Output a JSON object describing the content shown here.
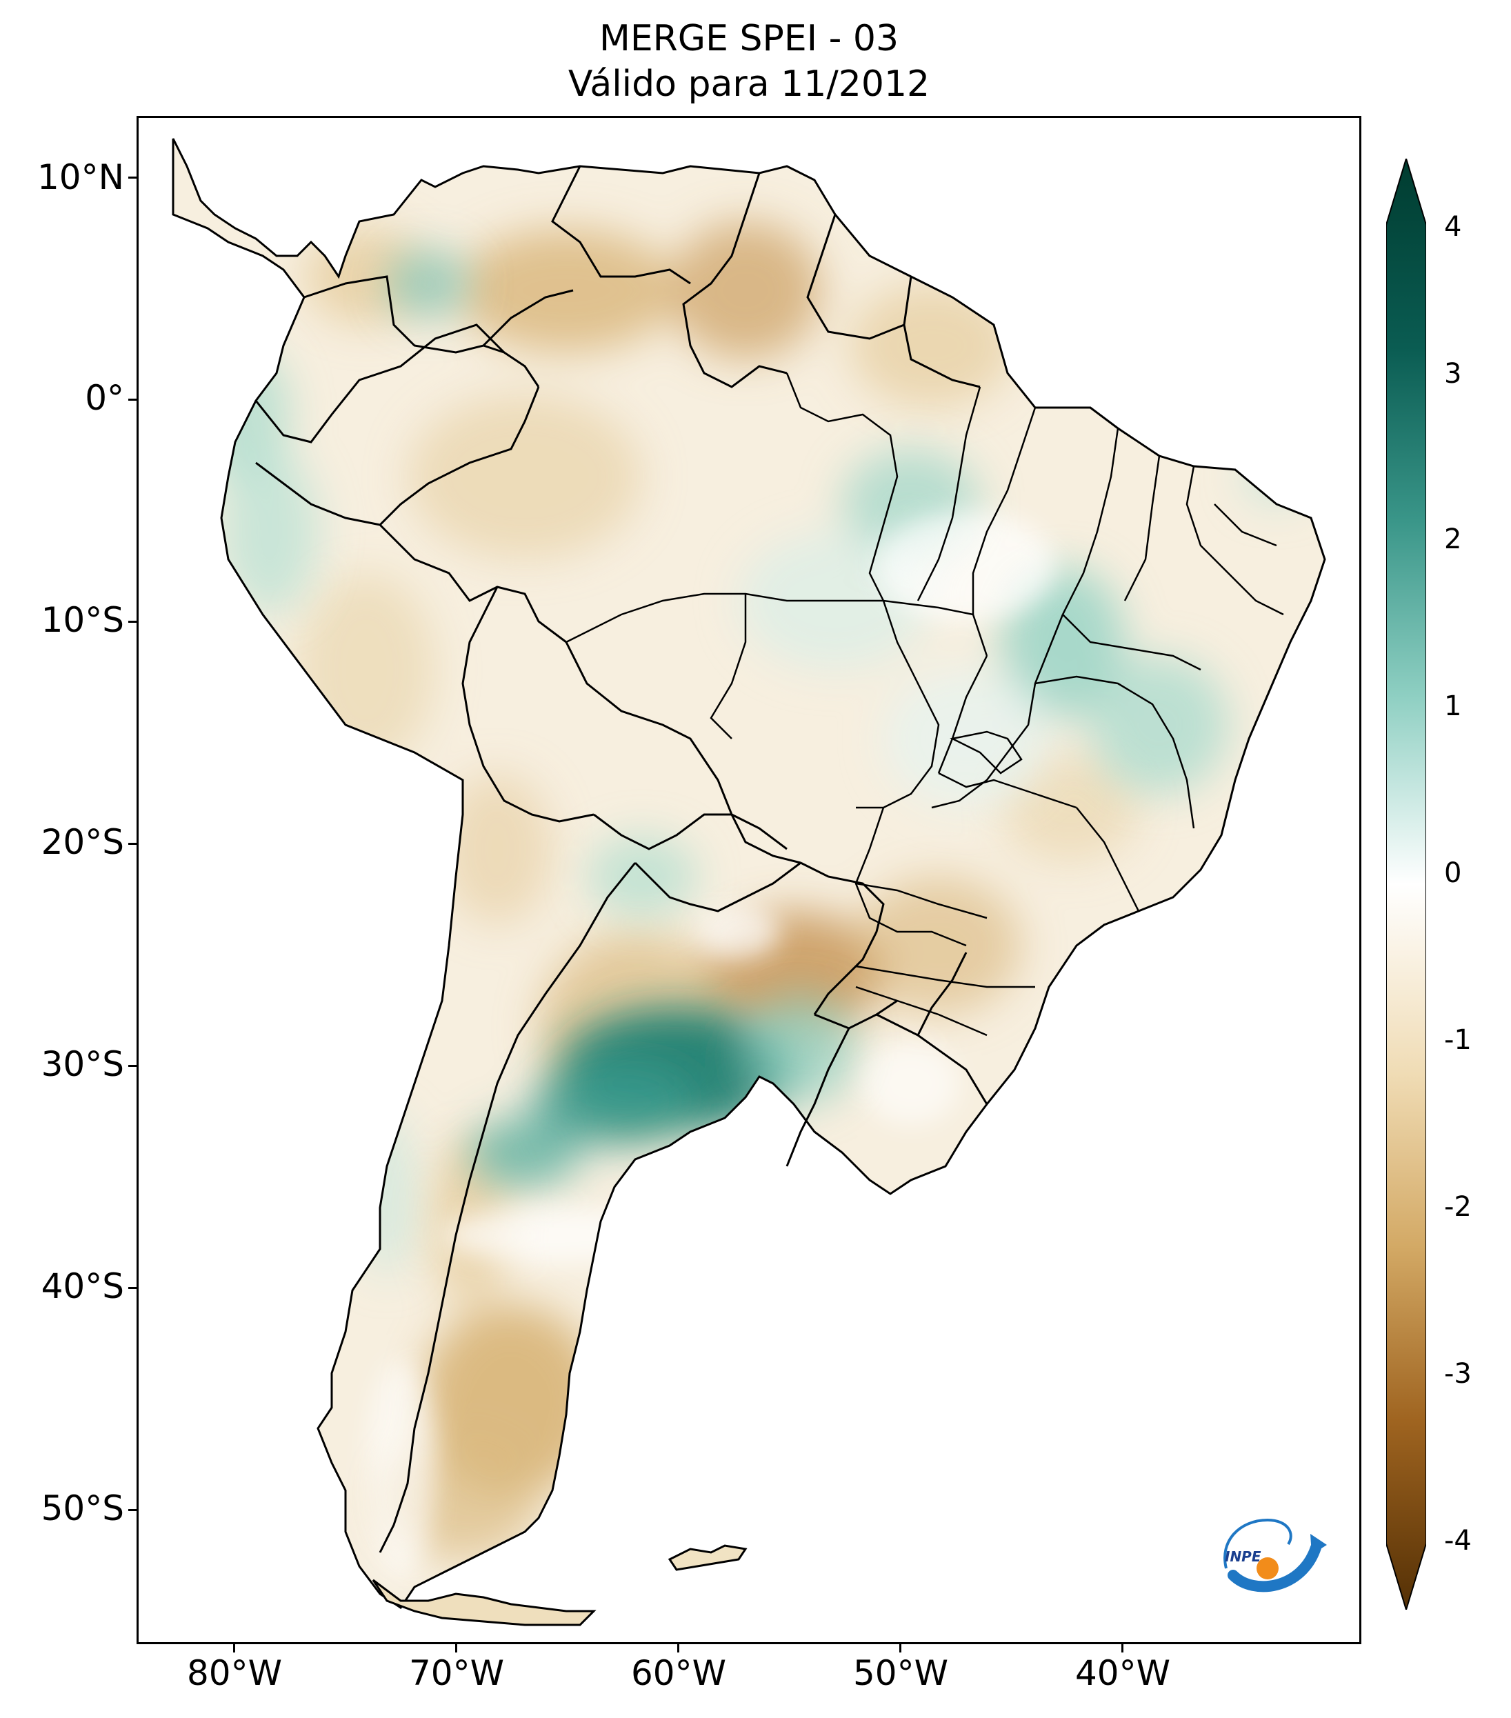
{
  "title": {
    "line1": "MERGE   SPEI - 03",
    "line2": "Válido para 11/2012"
  },
  "map": {
    "lon_range": [
      -85,
      -30
    ],
    "lat_range": [
      -56,
      13
    ],
    "lat_ticks": [
      "10°N",
      "0°",
      "10°S",
      "20°S",
      "30°S",
      "40°S",
      "50°S"
    ],
    "lon_ticks": [
      "80°W",
      "70°W",
      "60°W",
      "50°W",
      "40°W"
    ]
  },
  "colorbar": {
    "ticks": [
      "4",
      "3",
      "2",
      "1",
      "0",
      "-1",
      "-2",
      "-3",
      "-4"
    ],
    "range": [
      -4,
      4
    ],
    "colormap": "BrBG",
    "colors": {
      "v-4": "#543005",
      "v-3": "#8c510a",
      "v-2": "#c99a4b",
      "v-1": "#f2e2bf",
      "v0": "#ffffff",
      "v1": "#c4ebe4",
      "v2": "#5ab0a5",
      "v3": "#117d70",
      "v4": "#003c30"
    },
    "extend": "both"
  },
  "logo": {
    "text": "INPE"
  }
}
